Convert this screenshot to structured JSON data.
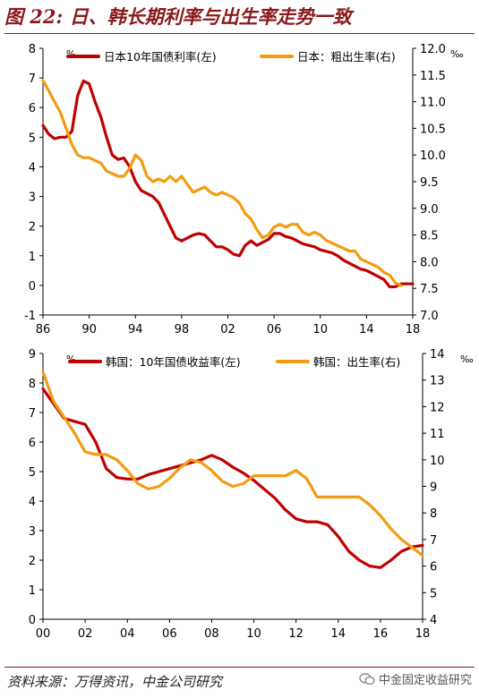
{
  "figure": {
    "title": "图 22: 日、韩长期利率与出生率走势一致",
    "source": "资料来源：万得资讯，中金公司研究",
    "watermark": "中金固定收益研究",
    "colors": {
      "title": "#8b1a1a",
      "red_series": "#c00000",
      "orange_series": "#f39c12"
    }
  },
  "chart_data": [
    {
      "type": "line",
      "name": "japan",
      "x_ticks": [
        "86",
        "90",
        "94",
        "98",
        "02",
        "06",
        "10",
        "14",
        "18"
      ],
      "xlim": [
        1986,
        2018
      ],
      "ylim_left": [
        -1,
        8
      ],
      "y_ticks_left": [
        "-1",
        "0",
        "1",
        "2",
        "3",
        "4",
        "5",
        "6",
        "7",
        "8"
      ],
      "ylabel_left": "%",
      "ylim_right": [
        7.0,
        12.0
      ],
      "y_ticks_right": [
        "7.0",
        "7.5",
        "8.0",
        "8.5",
        "9.0",
        "9.5",
        "10.0",
        "10.5",
        "11.0",
        "11.5",
        "12.0"
      ],
      "ylabel_right": "‰",
      "legend_position": "top",
      "series": [
        {
          "name": "日本10年国债利率(左)",
          "axis": "left",
          "color": "#c00000",
          "x": [
            1986,
            1986.5,
            1987,
            1987.5,
            1988,
            1988.5,
            1989,
            1989.5,
            1990,
            1990.5,
            1991,
            1991.5,
            1992,
            1992.5,
            1993,
            1993.5,
            1994,
            1994.5,
            1995,
            1995.5,
            1996,
            1996.5,
            1997,
            1997.5,
            1998,
            1998.5,
            1999,
            1999.5,
            2000,
            2000.5,
            2001,
            2001.5,
            2002,
            2002.5,
            2003,
            2003.5,
            2004,
            2004.5,
            2005,
            2005.5,
            2006,
            2006.5,
            2007,
            2007.5,
            2008,
            2008.5,
            2009,
            2009.5,
            2010,
            2010.5,
            2011,
            2011.5,
            2012,
            2012.5,
            2013,
            2013.5,
            2014,
            2014.5,
            2015,
            2015.5,
            2016,
            2016.5,
            2017,
            2017.5,
            2018
          ],
          "values": [
            5.4,
            5.1,
            4.95,
            5.0,
            5.0,
            5.2,
            6.4,
            6.9,
            6.8,
            6.2,
            5.7,
            5.0,
            4.4,
            4.25,
            4.3,
            4.0,
            3.5,
            3.2,
            3.1,
            3.0,
            2.8,
            2.4,
            2.0,
            1.6,
            1.5,
            1.6,
            1.7,
            1.75,
            1.7,
            1.5,
            1.3,
            1.3,
            1.2,
            1.05,
            1.0,
            1.35,
            1.5,
            1.35,
            1.45,
            1.55,
            1.75,
            1.75,
            1.65,
            1.6,
            1.5,
            1.4,
            1.35,
            1.3,
            1.2,
            1.15,
            1.1,
            1.0,
            0.85,
            0.75,
            0.65,
            0.55,
            0.5,
            0.4,
            0.3,
            0.2,
            -0.05,
            -0.05,
            0.05,
            0.05,
            0.05
          ]
        },
        {
          "name": "日本：粗出生率(右)",
          "axis": "right",
          "color": "#f39c12",
          "x": [
            1986,
            1986.5,
            1987,
            1987.5,
            1988,
            1988.5,
            1989,
            1989.5,
            1990,
            1990.5,
            1991,
            1991.5,
            1992,
            1992.5,
            1993,
            1993.5,
            1994,
            1994.5,
            1995,
            1995.5,
            1996,
            1996.5,
            1997,
            1997.5,
            1998,
            1998.5,
            1999,
            1999.5,
            2000,
            2000.5,
            2001,
            2001.5,
            2002,
            2002.5,
            2003,
            2003.5,
            2004,
            2004.5,
            2005,
            2005.5,
            2006,
            2006.5,
            2007,
            2007.5,
            2008,
            2008.5,
            2009,
            2009.5,
            2010,
            2010.5,
            2011,
            2011.5,
            2012,
            2012.5,
            2013,
            2013.5,
            2014,
            2014.5,
            2015,
            2015.5,
            2016,
            2016.5,
            2017
          ],
          "values": [
            11.4,
            11.2,
            11.0,
            10.8,
            10.5,
            10.2,
            10.0,
            9.95,
            9.95,
            9.9,
            9.85,
            9.7,
            9.65,
            9.6,
            9.6,
            9.75,
            10.0,
            9.9,
            9.6,
            9.5,
            9.55,
            9.5,
            9.6,
            9.5,
            9.6,
            9.45,
            9.3,
            9.35,
            9.4,
            9.3,
            9.25,
            9.3,
            9.25,
            9.2,
            9.1,
            8.9,
            8.8,
            8.6,
            8.45,
            8.5,
            8.65,
            8.7,
            8.65,
            8.7,
            8.7,
            8.55,
            8.5,
            8.55,
            8.5,
            8.4,
            8.35,
            8.3,
            8.25,
            8.2,
            8.2,
            8.05,
            8.0,
            7.95,
            7.9,
            7.8,
            7.75,
            7.6,
            7.55
          ]
        }
      ]
    },
    {
      "type": "line",
      "name": "korea",
      "x_ticks": [
        "00",
        "02",
        "04",
        "06",
        "08",
        "10",
        "12",
        "14",
        "16",
        "18"
      ],
      "xlim": [
        2000,
        2018
      ],
      "ylim_left": [
        0,
        9
      ],
      "y_ticks_left": [
        "0",
        "1",
        "2",
        "3",
        "4",
        "5",
        "6",
        "7",
        "8",
        "9"
      ],
      "ylabel_left": "%",
      "ylim_right": [
        4,
        14
      ],
      "y_ticks_right": [
        "4",
        "5",
        "6",
        "7",
        "8",
        "9",
        "10",
        "11",
        "12",
        "13",
        "14"
      ],
      "ylabel_right": "‰",
      "legend_position": "top",
      "series": [
        {
          "name": "韩国：10年国债收益率(左)",
          "axis": "left",
          "color": "#c00000",
          "x": [
            2000,
            2000.5,
            2001,
            2001.5,
            2002,
            2002.5,
            2003,
            2003.5,
            2004,
            2004.5,
            2005,
            2005.5,
            2006,
            2006.5,
            2007,
            2007.5,
            2008,
            2008.5,
            2009,
            2009.5,
            2010,
            2010.5,
            2011,
            2011.5,
            2012,
            2012.5,
            2013,
            2013.5,
            2014,
            2014.5,
            2015,
            2015.5,
            2016,
            2016.5,
            2017,
            2017.5,
            2018
          ],
          "values": [
            7.8,
            7.3,
            6.8,
            6.7,
            6.6,
            6.0,
            5.1,
            4.8,
            4.75,
            4.75,
            4.9,
            5.0,
            5.1,
            5.2,
            5.3,
            5.4,
            5.55,
            5.4,
            5.15,
            4.95,
            4.7,
            4.4,
            4.1,
            3.7,
            3.4,
            3.3,
            3.3,
            3.2,
            2.8,
            2.3,
            2.0,
            1.8,
            1.75,
            2.0,
            2.3,
            2.45,
            2.5
          ]
        },
        {
          "name": "韩国：出生率(右)",
          "axis": "right",
          "color": "#f39c12",
          "x": [
            2000,
            2000.5,
            2001,
            2001.5,
            2002,
            2002.5,
            2003,
            2003.5,
            2004,
            2004.5,
            2005,
            2005.5,
            2006,
            2006.5,
            2007,
            2007.5,
            2008,
            2008.5,
            2009,
            2009.5,
            2010,
            2010.5,
            2011,
            2011.5,
            2012,
            2012.5,
            2013,
            2013.5,
            2014,
            2014.5,
            2015,
            2015.5,
            2016,
            2016.5,
            2017,
            2017.5,
            2018
          ],
          "values": [
            13.3,
            12.2,
            11.6,
            11.0,
            10.3,
            10.2,
            10.2,
            10.0,
            9.6,
            9.1,
            8.9,
            9.0,
            9.3,
            9.7,
            10.0,
            9.9,
            9.6,
            9.2,
            9.0,
            9.1,
            9.4,
            9.4,
            9.4,
            9.4,
            9.6,
            9.3,
            8.6,
            8.6,
            8.6,
            8.6,
            8.6,
            8.3,
            7.9,
            7.4,
            7.0,
            6.7,
            6.4
          ]
        }
      ]
    }
  ]
}
